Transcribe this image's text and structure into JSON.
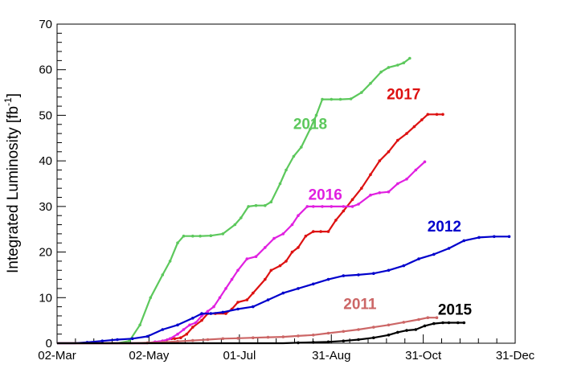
{
  "chart_data": {
    "type": "line",
    "title": "",
    "xlabel": "",
    "ylabel": "Integrated Luminosity [fb",
    "ylabel_superscript": "-1",
    "ylabel_suffix": "]",
    "xlim": [
      0,
      304
    ],
    "ylim": [
      0,
      70
    ],
    "x_ticks": [
      {
        "value": 0,
        "label": "02-Mar"
      },
      {
        "value": 61,
        "label": "02-May"
      },
      {
        "value": 121,
        "label": "01-Jul"
      },
      {
        "value": 182,
        "label": "31-Aug"
      },
      {
        "value": 243,
        "label": "31-Oct"
      },
      {
        "value": 304,
        "label": "31-Dec"
      }
    ],
    "y_ticks": [
      0,
      10,
      20,
      30,
      40,
      50,
      60,
      70
    ],
    "grid": false,
    "series": [
      {
        "name": "2018",
        "color": "#5cc85c",
        "x": [
          0,
          30,
          40,
          48,
          55,
          62,
          70,
          75,
          80,
          84,
          90,
          95,
          102,
          110,
          118,
          122,
          127,
          132,
          138,
          142,
          148,
          152,
          157,
          162,
          168,
          172,
          176,
          182,
          188,
          195,
          202,
          208,
          215,
          220,
          226,
          230,
          234
        ],
        "y": [
          0,
          0,
          0,
          0.5,
          4,
          10,
          15,
          18,
          22,
          23.5,
          23.5,
          23.5,
          23.6,
          24,
          26,
          27.5,
          30,
          30.2,
          30.2,
          31,
          35,
          38,
          41,
          43,
          47,
          50,
          53.5,
          53.5,
          53.5,
          53.6,
          55,
          57,
          59.5,
          60.5,
          61,
          61.5,
          62.5
        ]
      },
      {
        "name": "2017",
        "color": "#dd1111",
        "x": [
          0,
          60,
          70,
          76,
          78,
          82,
          86,
          90,
          96,
          100,
          105,
          112,
          116,
          120,
          126,
          130,
          138,
          142,
          148,
          152,
          156,
          160,
          165,
          170,
          175,
          180,
          185,
          190,
          196,
          202,
          208,
          214,
          220,
          226,
          232,
          237,
          242,
          246,
          252,
          256
        ],
        "y": [
          0,
          0,
          0.5,
          1,
          1,
          1.2,
          2,
          3.5,
          5,
          6.5,
          6.5,
          6.5,
          7.5,
          9,
          9.5,
          11,
          14,
          16,
          17,
          18,
          20,
          21,
          23.5,
          24.5,
          24.5,
          24.5,
          27,
          29,
          31.5,
          34,
          37,
          40,
          42,
          44.5,
          46,
          47.5,
          49,
          50.2,
          50.2,
          50.2
        ]
      },
      {
        "name": "2016",
        "color": "#e020e0",
        "x": [
          0,
          60,
          65,
          70,
          75,
          80,
          84,
          88,
          92,
          96,
          100,
          104,
          108,
          112,
          116,
          120,
          126,
          132,
          138,
          144,
          150,
          156,
          160,
          166,
          170,
          176,
          182,
          190,
          196,
          200,
          208,
          214,
          220,
          226,
          232,
          238,
          244
        ],
        "y": [
          0,
          0,
          0.3,
          0.5,
          1,
          2,
          3,
          4,
          4.5,
          6,
          7,
          8,
          10,
          12,
          14,
          16,
          18.5,
          19,
          21,
          23,
          24,
          26,
          28,
          30,
          30,
          30,
          30,
          30,
          30,
          30.5,
          32.5,
          33,
          33.2,
          35,
          36,
          38,
          39.8
        ]
      },
      {
        "name": "2012",
        "color": "#0000cc",
        "x": [
          0,
          12,
          20,
          30,
          40,
          50,
          60,
          70,
          80,
          90,
          96,
          102,
          110,
          120,
          130,
          140,
          150,
          160,
          170,
          180,
          190,
          200,
          210,
          220,
          230,
          240,
          250,
          260,
          270,
          280,
          290,
          300
        ],
        "y": [
          0,
          0,
          0.2,
          0.5,
          0.8,
          1,
          1.5,
          3,
          4,
          5.5,
          6.5,
          6.5,
          6.8,
          7.5,
          8,
          9.5,
          11,
          12,
          13,
          14,
          14.8,
          15,
          15.3,
          16,
          17,
          18.5,
          19.5,
          20.8,
          22.5,
          23.2,
          23.4,
          23.4
        ]
      },
      {
        "name": "2011",
        "color": "#cc6666",
        "x": [
          0,
          50,
          60,
          70,
          80,
          90,
          100,
          110,
          120,
          130,
          140,
          150,
          160,
          170,
          180,
          190,
          200,
          210,
          220,
          230,
          240,
          246,
          252
        ],
        "y": [
          0,
          0,
          0.1,
          0.2,
          0.4,
          0.6,
          0.8,
          1,
          1.1,
          1.2,
          1.3,
          1.4,
          1.6,
          1.8,
          2.2,
          2.6,
          3,
          3.5,
          4,
          4.6,
          5.2,
          5.6,
          5.6
        ]
      },
      {
        "name": "2015",
        "color": "#000000",
        "x": [
          0,
          140,
          150,
          160,
          170,
          180,
          190,
          200,
          210,
          220,
          226,
          232,
          238,
          244,
          250,
          256,
          260,
          266,
          270
        ],
        "y": [
          0,
          0,
          0,
          0.1,
          0.2,
          0.3,
          0.5,
          0.8,
          1.2,
          1.8,
          2.4,
          2.8,
          3,
          3.8,
          4.3,
          4.5,
          4.5,
          4.5,
          4.5
        ]
      }
    ],
    "labels": [
      {
        "text": "2018",
        "x": 168,
        "y": 47,
        "color": "#5cc85c"
      },
      {
        "text": "2017",
        "x": 230,
        "y": 53.5,
        "color": "#dd1111"
      },
      {
        "text": "2016",
        "x": 178,
        "y": 31.5,
        "color": "#e020e0"
      },
      {
        "text": "2012",
        "x": 257,
        "y": 24.5,
        "color": "#0000cc"
      },
      {
        "text": "2011",
        "x": 201,
        "y": 7.5,
        "color": "#cc6666"
      },
      {
        "text": "2015",
        "x": 264,
        "y": 6.3,
        "color": "#000000"
      }
    ]
  }
}
